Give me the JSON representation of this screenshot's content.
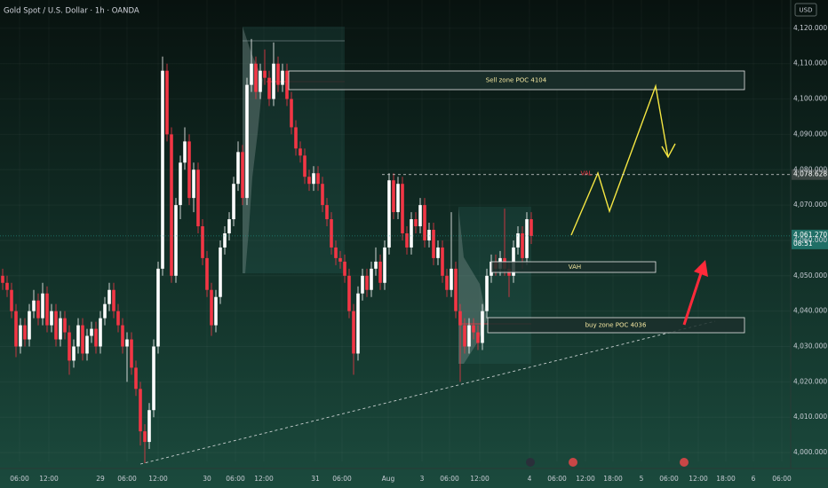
{
  "chart_data": {
    "type": "candlestick",
    "title": "Gold Spot / U.S. Dollar · 1h · OANDA",
    "currency": "USD",
    "up_color": "#ffffff",
    "down_color": "#f23645",
    "grid": true,
    "ylim": [
      3997.5,
      4128
    ],
    "yticks": [
      {
        "value": 4000,
        "label": "4,000.000"
      },
      {
        "value": 4010,
        "label": "4,010.000"
      },
      {
        "value": 4020,
        "label": "4,020.000"
      },
      {
        "value": 4030,
        "label": "4,030.000"
      },
      {
        "value": 4040,
        "label": "4,040.000"
      },
      {
        "value": 4050,
        "label": "4,050.000"
      },
      {
        "value": 4060,
        "label": "4,060.000"
      },
      {
        "value": 4070,
        "label": "4,070.000"
      },
      {
        "value": 4080,
        "label": "4,080.000"
      },
      {
        "value": 4090,
        "label": "4,090.000"
      },
      {
        "value": 4100,
        "label": "4,100.000"
      },
      {
        "value": 4110,
        "label": "4,110.000"
      },
      {
        "value": 4120,
        "label": "4,120.000"
      }
    ],
    "xlim": [
      -0.6,
      177.4
    ],
    "xticks": [
      {
        "value": 3.8,
        "label": "06:00"
      },
      {
        "value": 10.4,
        "label": "12:00"
      },
      {
        "value": 22,
        "label": "29"
      },
      {
        "value": 28,
        "label": "06:00"
      },
      {
        "value": 35,
        "label": "12:00"
      },
      {
        "value": 46,
        "label": "30"
      },
      {
        "value": 52.4,
        "label": "06:00"
      },
      {
        "value": 58.8,
        "label": "12:00"
      },
      {
        "value": 70.4,
        "label": "31"
      },
      {
        "value": 76.4,
        "label": "06:00"
      },
      {
        "value": 86.8,
        "label": "Aug"
      },
      {
        "value": 94.4,
        "label": "3"
      },
      {
        "value": 100.6,
        "label": "06:00"
      },
      {
        "value": 107.4,
        "label": "12:00"
      },
      {
        "value": 118.6,
        "label": "4"
      },
      {
        "value": 124.8,
        "label": "06:00"
      },
      {
        "value": 131.2,
        "label": "12:00"
      },
      {
        "value": 137.4,
        "label": "18:00"
      },
      {
        "value": 143.8,
        "label": "5"
      },
      {
        "value": 150,
        "label": "06:00"
      },
      {
        "value": 156.6,
        "label": "12:00"
      },
      {
        "value": 162.8,
        "label": "18:00"
      },
      {
        "value": 169,
        "label": "6"
      },
      {
        "value": 175.4,
        "label": "06:00"
      }
    ],
    "level": {
      "value": 4078.628,
      "label": "4,078.628",
      "name": "VAL"
    },
    "last_price_label": "4,061.270",
    "countdown": "08:51",
    "zones": [
      "Sell zone POC 4104",
      "VAH",
      "buy zone POC 4036"
    ],
    "ohlc": [
      [
        4050,
        4052,
        4046,
        4048
      ],
      [
        4048,
        4050,
        4044,
        4046
      ],
      [
        4046,
        4048,
        4038,
        4040
      ],
      [
        4040,
        4042,
        4027,
        4030
      ],
      [
        4030,
        4038,
        4028,
        4036
      ],
      [
        4036,
        4038,
        4030,
        4032
      ],
      [
        4032,
        4042,
        4030,
        4040
      ],
      [
        4040,
        4046,
        4038,
        4043
      ],
      [
        4043,
        4045,
        4036,
        4038
      ],
      [
        4038,
        4048,
        4036,
        4045
      ],
      [
        4045,
        4047,
        4034,
        4036
      ],
      [
        4036,
        4042,
        4034,
        4040
      ],
      [
        4040,
        4042,
        4030,
        4032
      ],
      [
        4032,
        4040,
        4030,
        4038
      ],
      [
        4038,
        4040,
        4032,
        4034
      ],
      [
        4034,
        4036,
        4022,
        4026
      ],
      [
        4026,
        4032,
        4024,
        4030
      ],
      [
        4030,
        4038,
        4028,
        4036
      ],
      [
        4036,
        4038,
        4026,
        4028
      ],
      [
        4028,
        4035,
        4026,
        4033
      ],
      [
        4033,
        4037,
        4031,
        4035
      ],
      [
        4035,
        4037,
        4028,
        4030
      ],
      [
        4030,
        4040,
        4028,
        4038
      ],
      [
        4038,
        4044,
        4036,
        4042
      ],
      [
        4042,
        4048,
        4040,
        4046
      ],
      [
        4046,
        4048,
        4038,
        4040
      ],
      [
        4040,
        4042,
        4034,
        4036
      ],
      [
        4036,
        4038,
        4028,
        4030
      ],
      [
        4030,
        4034,
        4020,
        4032
      ],
      [
        4032,
        4034,
        4022,
        4024
      ],
      [
        4024,
        4026,
        4016,
        4018
      ],
      [
        4018,
        4020,
        4002,
        4006
      ],
      [
        4006,
        4008,
        3997,
        4003
      ],
      [
        4003,
        4014,
        4001,
        4012
      ],
      [
        4012,
        4032,
        4010,
        4030
      ],
      [
        4030,
        4054,
        4028,
        4052
      ],
      [
        4052,
        4112,
        4050,
        4108
      ],
      [
        4108,
        4110,
        4088,
        4090
      ],
      [
        4090,
        4092,
        4048,
        4050
      ],
      [
        4050,
        4072,
        4048,
        4070
      ],
      [
        4070,
        4084,
        4066,
        4082
      ],
      [
        4082,
        4092,
        4080,
        4088
      ],
      [
        4088,
        4090,
        4070,
        4072
      ],
      [
        4072,
        4082,
        4068,
        4080
      ],
      [
        4080,
        4082,
        4062,
        4064
      ],
      [
        4064,
        4066,
        4053,
        4055
      ],
      [
        4055,
        4057,
        4044,
        4046
      ],
      [
        4046,
        4048,
        4033,
        4036
      ],
      [
        4036,
        4046,
        4034,
        4044
      ],
      [
        4044,
        4060,
        4042,
        4058
      ],
      [
        4058,
        4064,
        4056,
        4062
      ],
      [
        4062,
        4068,
        4060,
        4066
      ],
      [
        4066,
        4078,
        4064,
        4076
      ],
      [
        4076,
        4088,
        4074,
        4085
      ],
      [
        4085,
        4087,
        4070,
        4072
      ],
      [
        4072,
        4106,
        4070,
        4104
      ],
      [
        4104,
        4117,
        4102,
        4110
      ],
      [
        4110,
        4112,
        4100,
        4102
      ],
      [
        4102,
        4110,
        4100,
        4108
      ],
      [
        4108,
        4114,
        4104,
        4106
      ],
      [
        4106,
        4108,
        4098,
        4100
      ],
      [
        4100,
        4116,
        4098,
        4110
      ],
      [
        4110,
        4112,
        4102,
        4104
      ],
      [
        4104,
        4110,
        4102,
        4108
      ],
      [
        4108,
        4110,
        4098,
        4100
      ],
      [
        4100,
        4102,
        4090,
        4092
      ],
      [
        4092,
        4094,
        4084,
        4086
      ],
      [
        4086,
        4088,
        4082,
        4084
      ],
      [
        4084,
        4086,
        4076,
        4078
      ],
      [
        4078,
        4080,
        4074,
        4076
      ],
      [
        4076,
        4081,
        4074,
        4079
      ],
      [
        4079,
        4081,
        4074,
        4076
      ],
      [
        4076,
        4078,
        4068,
        4070
      ],
      [
        4070,
        4072,
        4064,
        4066
      ],
      [
        4066,
        4068,
        4056,
        4058
      ],
      [
        4058,
        4060,
        4053,
        4055
      ],
      [
        4055,
        4057,
        4052,
        4054
      ],
      [
        4054,
        4056,
        4048,
        4050
      ],
      [
        4050,
        4052,
        4038,
        4040
      ],
      [
        4040,
        4042,
        4022,
        4028
      ],
      [
        4028,
        4047,
        4026,
        4045
      ],
      [
        4045,
        4052,
        4043,
        4050
      ],
      [
        4050,
        4052,
        4044,
        4046
      ],
      [
        4046,
        4054,
        4044,
        4052
      ],
      [
        4052,
        4058,
        4050,
        4054
      ],
      [
        4054,
        4056,
        4046,
        4048
      ],
      [
        4048,
        4060,
        4046,
        4058
      ],
      [
        4058,
        4079,
        4056,
        4077
      ],
      [
        4077,
        4079,
        4066,
        4068
      ],
      [
        4068,
        4078,
        4066,
        4076
      ],
      [
        4076,
        4078,
        4060,
        4062
      ],
      [
        4062,
        4064,
        4056,
        4058
      ],
      [
        4058,
        4068,
        4056,
        4066
      ],
      [
        4066,
        4068,
        4062,
        4064
      ],
      [
        4064,
        4072,
        4062,
        4070
      ],
      [
        4070,
        4072,
        4058,
        4060
      ],
      [
        4060,
        4065,
        4058,
        4063
      ],
      [
        4063,
        4065,
        4053,
        4055
      ],
      [
        4055,
        4060,
        4053,
        4058
      ],
      [
        4058,
        4060,
        4048,
        4050
      ],
      [
        4050,
        4052,
        4044,
        4046
      ],
      [
        4046,
        4068,
        4044,
        4052
      ],
      [
        4052,
        4054,
        4038,
        4040
      ],
      [
        4040,
        4042,
        4020,
        4036
      ],
      [
        4036,
        4038,
        4028,
        4030
      ],
      [
        4030,
        4038,
        4028,
        4036
      ],
      [
        4036,
        4038,
        4032,
        4034
      ],
      [
        4034,
        4036,
        4029,
        4031
      ],
      [
        4031,
        4042,
        4029,
        4040
      ],
      [
        4040,
        4052,
        4038,
        4050
      ],
      [
        4050,
        4056,
        4048,
        4054
      ],
      [
        4054,
        4056,
        4050,
        4052
      ],
      [
        4052,
        4057,
        4050,
        4055
      ],
      [
        4055,
        4069,
        4050,
        4052
      ],
      [
        4052,
        4054,
        4044,
        4050
      ],
      [
        4050,
        4060,
        4048,
        4058
      ],
      [
        4058,
        4064,
        4056,
        4062
      ],
      [
        4062,
        4064,
        4052,
        4055
      ],
      [
        4055,
        4068,
        4053,
        4066
      ],
      [
        4066,
        4068,
        4059,
        4061.27
      ]
    ]
  }
}
